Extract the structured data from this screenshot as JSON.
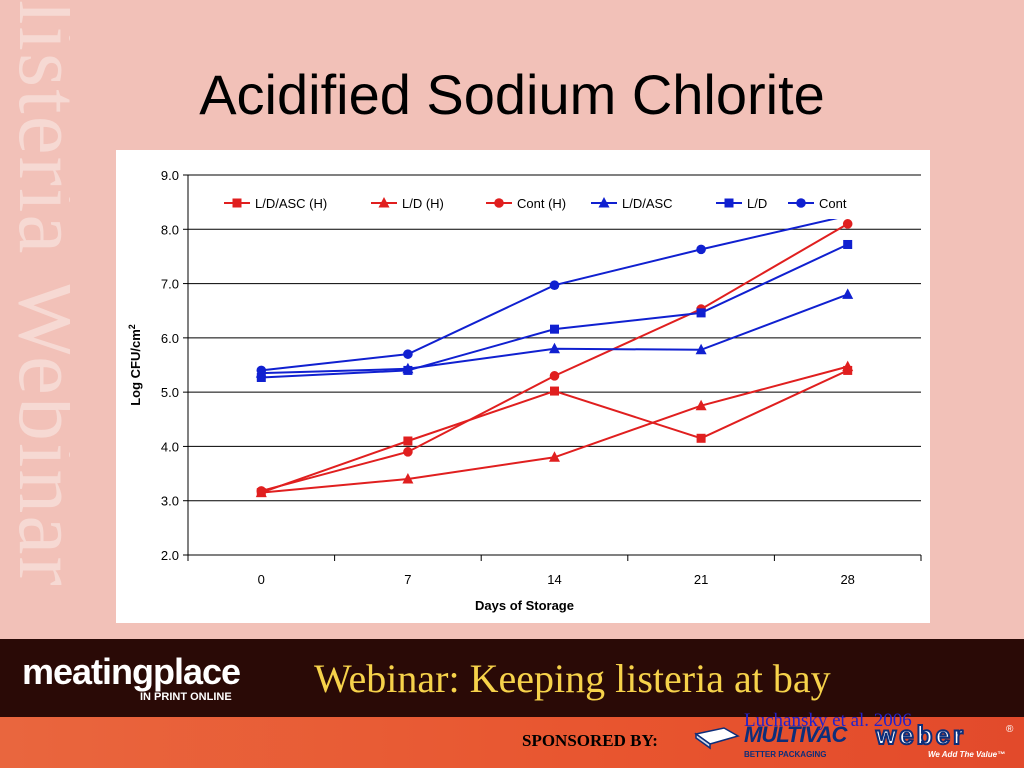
{
  "slide": {
    "title": "Acidified Sodium Chlorite",
    "watermark": "listeria Webinar",
    "citation": "Luchansky et al. 2006"
  },
  "footer": {
    "brand": "meatingplace",
    "brand_sub": "IN PRINT ONLINE",
    "webinar_title": "Webinar: Keeping listeria at bay",
    "sponsored_label": "SPONSORED BY:",
    "sponsor1": "MULTIVAC",
    "sponsor1_tagline": "BETTER PACKAGING",
    "sponsor2": "weber",
    "sponsor2_tagline": "We Add The Value™",
    "registered_mark": "®"
  },
  "colors": {
    "background": "#f2c1b8",
    "red_series": "#e01f1f",
    "blue_series": "#1020d0",
    "footer_dark": "#2a0a06",
    "webinar_text": "#f6d24a"
  },
  "chart_data": {
    "type": "line",
    "xlabel": "Days of Storage",
    "ylabel": "Log CFU/cm",
    "ylabel_sup": "2",
    "categories": [
      "0",
      "7",
      "14",
      "21",
      "28"
    ],
    "ylim": [
      2.0,
      9.0
    ],
    "yticks": [
      "2.0",
      "3.0",
      "4.0",
      "5.0",
      "6.0",
      "7.0",
      "8.0",
      "9.0"
    ],
    "grid": "horizontal",
    "legend_position": "top",
    "series": [
      {
        "name": "L/D/ASC (H)",
        "color": "#e01f1f",
        "marker": "square",
        "values": [
          3.15,
          4.1,
          5.02,
          4.15,
          5.4
        ]
      },
      {
        "name": "L/D (H)",
        "color": "#e01f1f",
        "marker": "triangle",
        "values": [
          3.15,
          3.4,
          3.8,
          4.75,
          5.47
        ]
      },
      {
        "name": "Cont (H)",
        "color": "#e01f1f",
        "marker": "circle",
        "values": [
          3.18,
          3.9,
          5.3,
          6.53,
          8.1
        ]
      },
      {
        "name": "L/D/ASC",
        "color": "#1020d0",
        "marker": "triangle",
        "values": [
          5.35,
          5.43,
          5.8,
          5.78,
          6.8
        ]
      },
      {
        "name": "L/D",
        "color": "#1020d0",
        "marker": "square",
        "values": [
          5.27,
          5.4,
          6.16,
          6.46,
          7.72
        ]
      },
      {
        "name": "Cont",
        "color": "#1020d0",
        "marker": "circle",
        "values": [
          5.4,
          5.7,
          6.97,
          7.63,
          8.25
        ]
      }
    ]
  }
}
